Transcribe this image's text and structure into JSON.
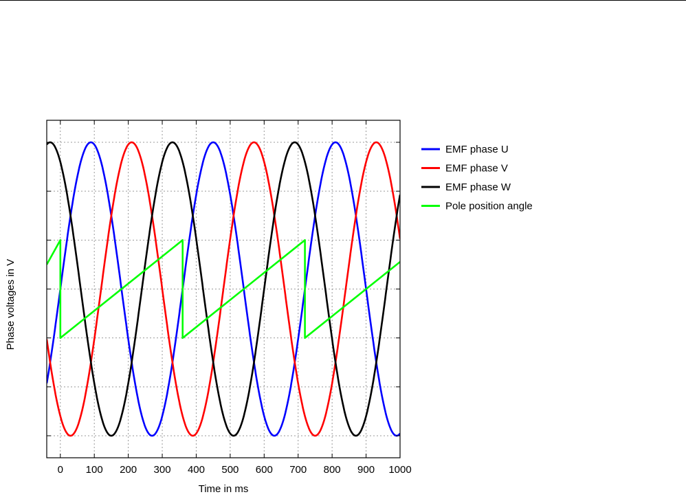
{
  "chart_data": {
    "type": "line",
    "title": "",
    "xlabel": "Time in ms",
    "ylabel": "Phase voltages in V",
    "xlim": [
      -40,
      1000
    ],
    "ylim": [
      -1.15,
      1.15
    ],
    "x_ticks": [
      0,
      100,
      200,
      300,
      400,
      500,
      600,
      700,
      800,
      900,
      1000
    ],
    "y_grid": [
      -1,
      -0.6667,
      -0.3333,
      0,
      0.3333,
      0.6667,
      1
    ],
    "y_tick_labels_shown": false,
    "grid": true,
    "legend_position": "right",
    "period_ms": 360,
    "series": [
      {
        "name": "EMF phase U",
        "color": "#0000ff",
        "amplitude": 1,
        "peak_at_ms": 90
      },
      {
        "name": "EMF phase V",
        "color": "#ff0000",
        "amplitude": 1,
        "peak_at_ms": 210
      },
      {
        "name": "EMF phase W",
        "color": "#000000",
        "amplitude": 1,
        "peak_at_ms": -30
      },
      {
        "name": "Pole position angle",
        "color": "#00ff00",
        "shape": "sawtooth",
        "x": [
          -40,
          0,
          0,
          360,
          360,
          720,
          720,
          1000
        ],
        "y": [
          0.1667,
          0.3333,
          -0.3333,
          0.3333,
          -0.3333,
          0.3333,
          -0.3333,
          0.1852
        ]
      }
    ]
  }
}
